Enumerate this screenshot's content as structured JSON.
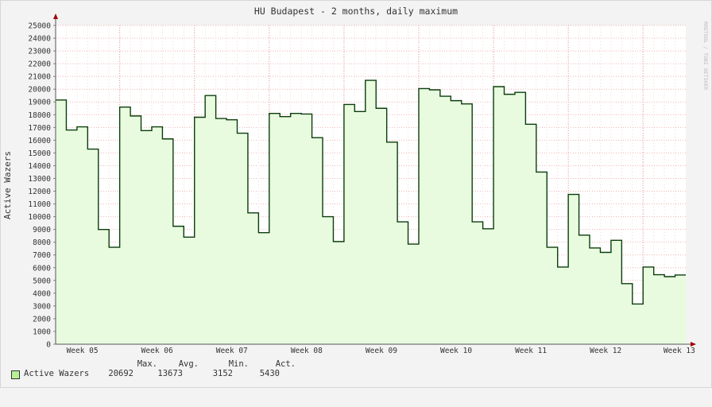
{
  "chart_data": {
    "type": "area",
    "title": "HU Budapest - 2 months, daily maximum",
    "ylabel": "Active Wazers",
    "watermark": "RRDTOOL / TOBI OETIKER",
    "ylim": [
      0,
      25000
    ],
    "ytick_step": 1000,
    "x_tick_labels": [
      "Week 05",
      "Week 06",
      "Week 07",
      "Week 08",
      "Week 09",
      "Week 10",
      "Week 11",
      "Week 12",
      "Week 13"
    ],
    "grid": true,
    "colors": {
      "line": "#0b3d0b",
      "fill": "#e8fbdf",
      "grid": "#f2b4b4",
      "axis": "#555555"
    },
    "series": [
      {
        "name": "Active Wazers",
        "values": [
          19150,
          16800,
          17050,
          15300,
          9000,
          7600,
          18600,
          17900,
          16750,
          17050,
          16100,
          9250,
          8400,
          17800,
          19500,
          17700,
          17600,
          16550,
          10300,
          8750,
          18100,
          17850,
          18100,
          18050,
          16200,
          10000,
          8050,
          18800,
          18250,
          20692,
          18500,
          15850,
          9600,
          7850,
          20050,
          19950,
          19450,
          19100,
          18850,
          9600,
          9050,
          20200,
          19600,
          19750,
          17250,
          13500,
          7600,
          6050,
          11750,
          8550,
          7550,
          7200,
          8150,
          4750,
          3152,
          6050,
          5450,
          5300,
          5430
        ]
      }
    ]
  },
  "legend": {
    "entries": [
      {
        "label": "Active Wazers",
        "color": "#b8f096"
      }
    ],
    "headers": {
      "max": "Max.",
      "avg": "Avg.",
      "min": "Min.",
      "act": "Act."
    },
    "values": {
      "max": "20692",
      "avg": "13673",
      "min": "3152",
      "act": "5430"
    }
  }
}
